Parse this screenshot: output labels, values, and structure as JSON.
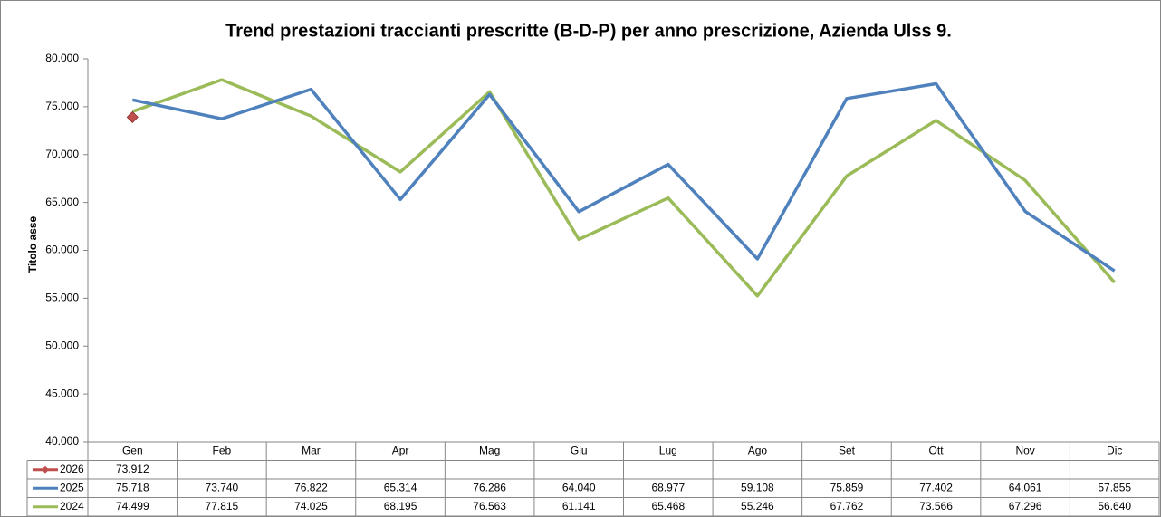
{
  "chart_data": {
    "type": "line",
    "title": "Trend prestazioni traccianti prescritte (B-D-P) per anno prescrizione, Azienda Ulss 9.",
    "y_label": "Titolo asse",
    "categories": [
      "Gen",
      "Feb",
      "Mar",
      "Apr",
      "Mag",
      "Giu",
      "Lug",
      "Ago",
      "Set",
      "Ott",
      "Nov",
      "Dic"
    ],
    "series": [
      {
        "name": "2026",
        "color": "#c0504d",
        "marker": "diamond",
        "values": [
          73912,
          null,
          null,
          null,
          null,
          null,
          null,
          null,
          null,
          null,
          null,
          null
        ],
        "value_labels": [
          "73.912",
          null,
          null,
          null,
          null,
          null,
          null,
          null,
          null,
          null,
          null,
          null
        ]
      },
      {
        "name": "2025",
        "color": "#4f81bd",
        "values": [
          75718,
          73740,
          76822,
          65314,
          76286,
          64040,
          68977,
          59108,
          75859,
          77402,
          64061,
          57855
        ],
        "value_labels": [
          "75.718",
          "73.740",
          "76.822",
          "65.314",
          "76.286",
          "64.040",
          "68.977",
          "59.108",
          "75.859",
          "77.402",
          "64.061",
          "57.855"
        ]
      },
      {
        "name": "2024",
        "color": "#9bbb59",
        "values": [
          74499,
          77815,
          74025,
          68195,
          76563,
          61141,
          65468,
          55246,
          67762,
          73566,
          67296,
          56640
        ],
        "value_labels": [
          "74.499",
          "77.815",
          "74.025",
          "68.195",
          "76.563",
          "61.141",
          "65.468",
          "55.246",
          "67.762",
          "73.566",
          "67.296",
          "56.640"
        ]
      }
    ],
    "ylim": [
      40000,
      80000
    ],
    "yticks": [
      {
        "value": 40000,
        "label": "40.000"
      },
      {
        "value": 45000,
        "label": "45.000"
      },
      {
        "value": 50000,
        "label": "50.000"
      },
      {
        "value": 55000,
        "label": "55.000"
      },
      {
        "value": 60000,
        "label": "60.000"
      },
      {
        "value": 65000,
        "label": "65.000"
      },
      {
        "value": 70000,
        "label": "70.000"
      },
      {
        "value": 75000,
        "label": "75.000"
      },
      {
        "value": 80000,
        "label": "80.000"
      }
    ],
    "grid": false
  }
}
